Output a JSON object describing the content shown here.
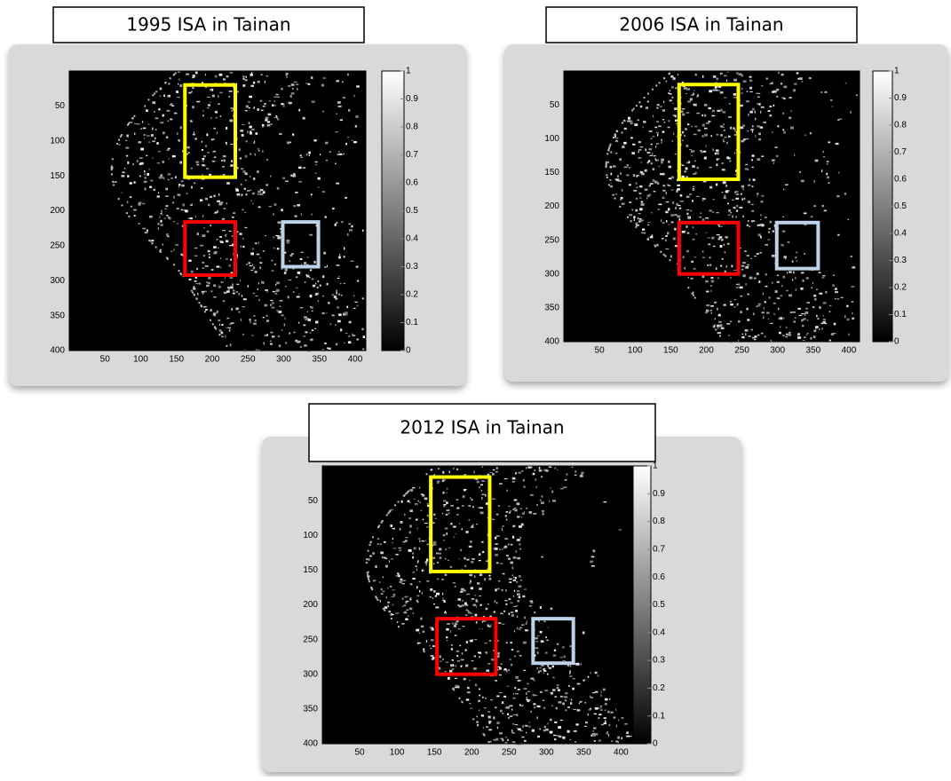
{
  "chart_data": [
    {
      "type": "image",
      "title": "1995 ISA in Tainan",
      "xlim": [
        0,
        415
      ],
      "ylim": [
        0,
        400
      ],
      "xticks": [
        50,
        100,
        150,
        200,
        250,
        300,
        350,
        400
      ],
      "yticks": [
        50,
        100,
        150,
        200,
        250,
        300,
        350,
        400
      ],
      "clim": [
        0,
        1
      ],
      "cticks": [
        0,
        0.1,
        0.2,
        0.3,
        0.4,
        0.5,
        0.6,
        0.7,
        0.8,
        0.9,
        1
      ],
      "colormap": [
        "#000000",
        "#ffffff"
      ]
    },
    {
      "type": "image",
      "title": "2006 ISA in Tainan",
      "xlim": [
        0,
        415
      ],
      "ylim": [
        0,
        400
      ],
      "xticks": [
        50,
        100,
        150,
        200,
        250,
        300,
        350,
        400
      ],
      "yticks": [
        50,
        100,
        150,
        200,
        250,
        300,
        350,
        400
      ],
      "clim": [
        0,
        1
      ],
      "cticks": [
        0,
        0.1,
        0.2,
        0.3,
        0.4,
        0.5,
        0.6,
        0.7,
        0.8,
        0.9,
        1
      ],
      "colormap": [
        "#000000",
        "#ffffff"
      ]
    },
    {
      "type": "image",
      "title": "2012 ISA in Tainan",
      "xlim": [
        0,
        415
      ],
      "ylim": [
        0,
        400
      ],
      "xticks": [
        50,
        100,
        150,
        200,
        250,
        300,
        350,
        400
      ],
      "yticks": [
        50,
        100,
        150,
        200,
        250,
        300,
        350,
        400
      ],
      "clim": [
        0,
        1
      ],
      "cticks": [
        0,
        0.1,
        0.2,
        0.3,
        0.4,
        0.5,
        0.6,
        0.7,
        0.8,
        0.9,
        1
      ],
      "colormap": [
        "#000000",
        "#ffffff"
      ]
    }
  ]
}
